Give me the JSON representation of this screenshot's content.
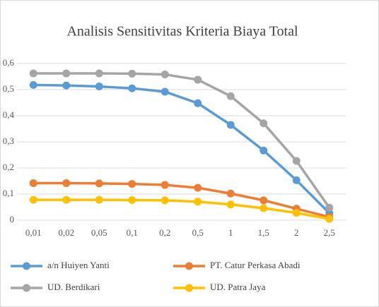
{
  "chart_data": {
    "type": "line",
    "title": "Analisis Sensitivitas Kriteria Biaya Total",
    "categories": [
      "0,01",
      "0,02",
      "0,05",
      "0,1",
      "0,2",
      "0,5",
      "1",
      "1,5",
      "2",
      "2,5"
    ],
    "series": [
      {
        "name": "a/n Huiyen Yanti",
        "color": "#5b9bd5",
        "values": [
          0.518,
          0.516,
          0.512,
          0.505,
          0.492,
          0.448,
          0.365,
          0.267,
          0.153,
          0.027
        ]
      },
      {
        "name": "PT. Catur Perkasa Abadi",
        "color": "#ed7d31",
        "values": [
          0.142,
          0.142,
          0.141,
          0.139,
          0.135,
          0.124,
          0.102,
          0.076,
          0.044,
          0.012
        ]
      },
      {
        "name": "UD. Berdikari",
        "color": "#a5a5a5",
        "values": [
          0.562,
          0.562,
          0.562,
          0.561,
          0.558,
          0.538,
          0.475,
          0.371,
          0.227,
          0.048
        ]
      },
      {
        "name": "UD. Patra Jaya",
        "color": "#ffc000",
        "values": [
          0.078,
          0.078,
          0.078,
          0.077,
          0.076,
          0.071,
          0.06,
          0.046,
          0.028,
          0.005
        ]
      }
    ],
    "ylim": [
      0,
      0.6
    ],
    "yticks": [
      0,
      {
        "value": 0.1,
        "label": "0,1"
      },
      {
        "value": 0.2,
        "label": "0,2"
      },
      {
        "value": 0.3,
        "label": "0,3"
      },
      {
        "value": 0.4,
        "label": "0,4"
      },
      {
        "value": 0.5,
        "label": "0,5"
      },
      {
        "value": 0.6,
        "label": "0,6"
      }
    ],
    "grid": true,
    "legend": "bottom"
  }
}
